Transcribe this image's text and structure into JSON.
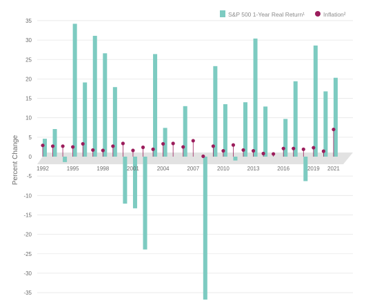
{
  "chart_data": {
    "type": "bar",
    "ylabel": "Percent Change",
    "ylim": [
      -38,
      37
    ],
    "yticks": [
      35,
      30,
      25,
      20,
      15,
      10,
      5,
      0,
      -5,
      -10,
      -15,
      -20,
      -25,
      -30,
      -35
    ],
    "grid": true,
    "legend_position": "top-right",
    "colors": {
      "returns": "#7dcbc1",
      "inflation": "#9b1d5c",
      "floor": "#d8d8d8"
    },
    "x": [
      1992,
      1993,
      1994,
      1995,
      1996,
      1997,
      1998,
      1999,
      2000,
      2001,
      2002,
      2003,
      2004,
      2005,
      2006,
      2007,
      2008,
      2009,
      2010,
      2011,
      2012,
      2013,
      2014,
      2015,
      2016,
      2017,
      2018,
      2019,
      2020,
      2021
    ],
    "xtick_labels": [
      "1992",
      "1995",
      "1998",
      "2001",
      "2004",
      "2007",
      "2010",
      "2013",
      "2016",
      "2019",
      "2021"
    ],
    "series": [
      {
        "name": "S&P 500 1-Year Real Return¹",
        "kind": "bar",
        "values": [
          4.6,
          7.1,
          -1.4,
          34.2,
          19.1,
          31.1,
          26.6,
          17.9,
          -12.1,
          -13.3,
          -23.9,
          26.4,
          7.4,
          0.0,
          13.0,
          0.0,
          -36.8,
          23.3,
          13.5,
          -1.0,
          14.0,
          30.4,
          12.9,
          0.0,
          9.7,
          19.4,
          -6.3,
          28.6,
          16.8,
          20.3
        ]
      },
      {
        "name": "Inflation²",
        "kind": "point",
        "values": [
          2.9,
          2.7,
          2.7,
          2.5,
          3.3,
          1.7,
          1.6,
          2.7,
          3.4,
          1.6,
          2.4,
          1.9,
          3.3,
          3.4,
          2.5,
          4.1,
          0.1,
          2.7,
          1.5,
          3.0,
          1.7,
          1.5,
          0.8,
          0.7,
          2.1,
          2.1,
          1.9,
          2.3,
          1.4,
          7.0
        ]
      }
    ]
  }
}
